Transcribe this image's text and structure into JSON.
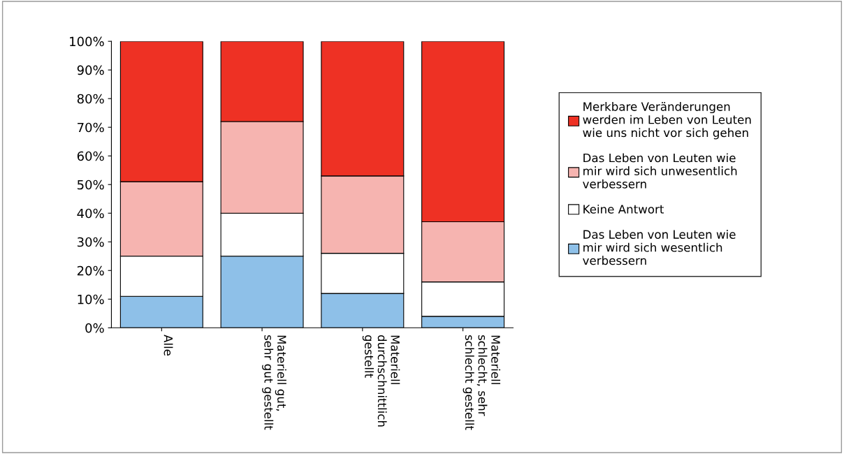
{
  "chart_data": {
    "type": "bar",
    "stacked": true,
    "categories": [
      "Alle",
      "Materiell gut,\nsehr gut gestellt",
      "Materiell\ndurchschnittlich\ngestellt",
      "Materiell\nschlecht, sehr\nschlecht gestellt"
    ],
    "series": [
      {
        "name": "Das Leben von Leuten wie\nmir wird sich wesentlich\nverbessern",
        "color": "#8ec0e8",
        "values": [
          11,
          25,
          12,
          4
        ]
      },
      {
        "name": "Keine Antwort",
        "color": "#ffffff",
        "values": [
          14,
          15,
          14,
          12
        ]
      },
      {
        "name": "Das Leben von Leuten wie\nmir wird sich unwesentlich\nverbessern",
        "color": "#f6b4b0",
        "values": [
          26,
          32,
          27,
          21
        ]
      },
      {
        "name": "Merkbare Veränderungen\nwerden im Leben von Leuten\nwie uns nicht vor sich gehen",
        "color": "#ee3124",
        "values": [
          49,
          28,
          47,
          63
        ]
      }
    ],
    "ylim": [
      0,
      100
    ],
    "yticks": [
      {
        "value": 0,
        "label": "0%"
      },
      {
        "value": 10,
        "label": "10%"
      },
      {
        "value": 20,
        "label": "20%"
      },
      {
        "value": 30,
        "label": "30%"
      },
      {
        "value": 40,
        "label": "40%"
      },
      {
        "value": 50,
        "label": "50%"
      },
      {
        "value": 60,
        "label": "60%"
      },
      {
        "value": 70,
        "label": "70%"
      },
      {
        "value": 80,
        "label": "80%"
      },
      {
        "value": 90,
        "label": "90%"
      },
      {
        "value": 100,
        "label": "100%"
      }
    ],
    "grid": false,
    "legend": "right"
  }
}
